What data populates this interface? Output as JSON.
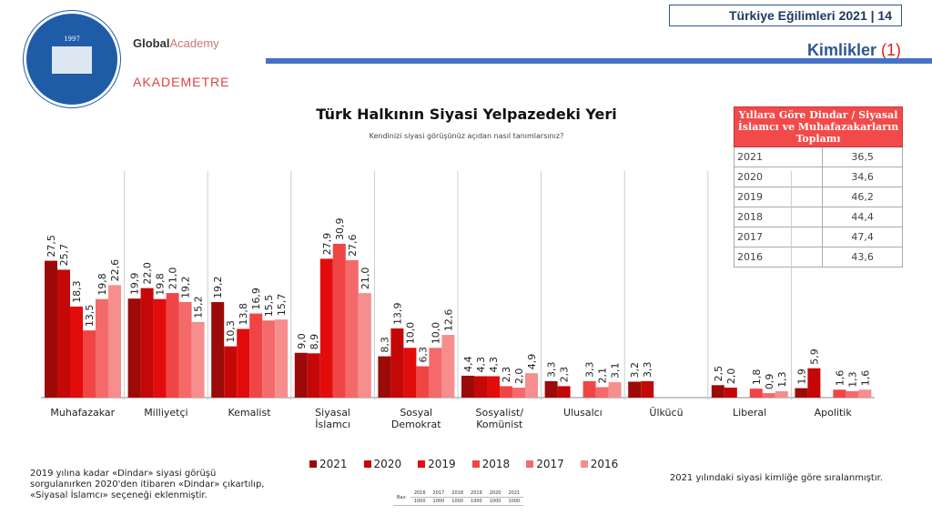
{
  "header": {
    "report_title": "Türkiye Eğilimleri 2021 | 14",
    "section": "Kimlikler",
    "section_num": "(1)",
    "logos": [
      "KADİR HAS ÜNİVERSİTESİ 1997",
      "Global Academy",
      "AKADEMETRE"
    ]
  },
  "summary_table": {
    "header": "Yıllara Göre Dindar / Siyasal İslamcı ve Muhafazakarların Toplamı",
    "rows": [
      [
        "2021",
        "36,5"
      ],
      [
        "2020",
        "34,6"
      ],
      [
        "2019",
        "46,2"
      ],
      [
        "2018",
        "44,4"
      ],
      [
        "2017",
        "47,4"
      ],
      [
        "2016",
        "43,6"
      ]
    ]
  },
  "notes": {
    "left": "2019 yılına kadar «Dindar» siyasi görüşü sorgulanırken 2020'den itibaren «Dindar» çıkartılıp, «Siyasal İslamcı» seçeneği eklenmiştir.",
    "right": "2021 yılındaki siyasi kimliğe göre sıralanmıştır."
  },
  "base_table": {
    "label": "Baz:",
    "years": [
      "2016",
      "2017",
      "2018",
      "2019",
      "2020",
      "2021"
    ],
    "values": [
      "1000",
      "1000",
      "1000",
      "1000",
      "1000",
      "1000"
    ]
  },
  "chart_data": {
    "type": "bar",
    "title": "Türk Halkının Siyasi Yelpazedeki Yeri",
    "subtitle": "Kendinizi siyasi görüşünüz açıdan nasıl tanımlarsınız?",
    "categories": [
      "Muhafazakar",
      "Milliyetçi",
      "Kemalist",
      "Siyasal İslamcı",
      "Sosyal Demokrat",
      "Sosyalist/ Komünist",
      "Ulusalcı",
      "Ülkücü",
      "Liberal",
      "Apolitik"
    ],
    "legend_position": "bottom",
    "grid": false,
    "series": [
      {
        "name": "2021",
        "color": "#9c0a0a",
        "values": [
          27.5,
          19.9,
          19.2,
          9.0,
          8.3,
          4.4,
          3.3,
          3.2,
          2.5,
          1.9
        ]
      },
      {
        "name": "2020",
        "color": "#c40808",
        "values": [
          25.7,
          22.0,
          10.3,
          8.9,
          13.9,
          4.3,
          2.3,
          3.3,
          2.0,
          5.9
        ]
      },
      {
        "name": "2019",
        "color": "#e30c0c",
        "values": [
          18.3,
          19.8,
          13.8,
          27.9,
          10.0,
          4.3,
          null,
          null,
          null,
          null
        ]
      },
      {
        "name": "2018",
        "color": "#f04545",
        "values": [
          13.5,
          21.0,
          16.9,
          30.9,
          6.3,
          2.3,
          3.3,
          null,
          1.8,
          1.6
        ]
      },
      {
        "name": "2017",
        "color": "#f46a6a",
        "values": [
          19.8,
          19.2,
          15.5,
          27.6,
          10.0,
          2.0,
          2.1,
          null,
          0.9,
          1.3
        ]
      },
      {
        "name": "2016",
        "color": "#f78e8e",
        "values": [
          22.6,
          15.2,
          15.7,
          21.0,
          12.6,
          4.9,
          3.1,
          null,
          1.3,
          1.6
        ]
      }
    ]
  }
}
